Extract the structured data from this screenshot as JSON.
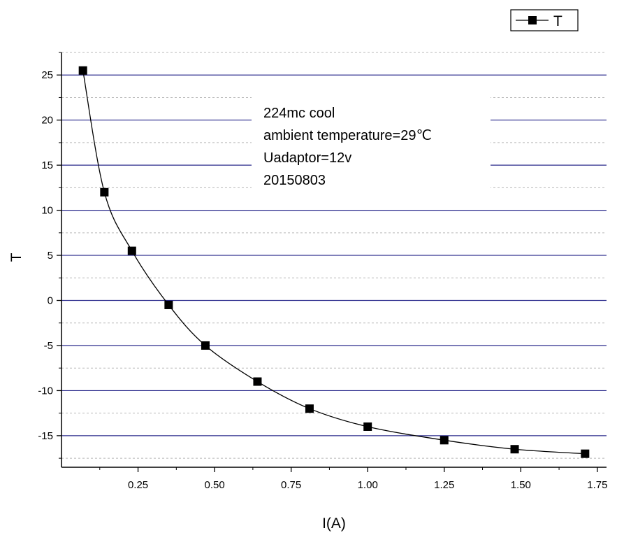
{
  "chart_data": {
    "type": "line",
    "title": "",
    "xlabel": "I(A)",
    "ylabel": "T",
    "xlim": [
      0,
      1.78
    ],
    "ylim": [
      -18.5,
      27.5
    ],
    "x_ticks": [
      0.25,
      0.5,
      0.75,
      1.0,
      1.25,
      1.5,
      1.75
    ],
    "x_tick_labels": [
      "0.25",
      "0.50",
      "0.75",
      "1.00",
      "1.25",
      "1.50",
      "1.75"
    ],
    "y_ticks": [
      25,
      20,
      15,
      10,
      5,
      0,
      -5,
      -10,
      -15
    ],
    "y_tick_labels": [
      "25",
      "20",
      "15",
      "10",
      "5",
      "0",
      "-5",
      "-10",
      "-15"
    ],
    "grid": true,
    "legend": {
      "position": "top-right",
      "entries": [
        "T"
      ]
    },
    "annotation_lines": [
      "224mc cool",
      "ambient temperature=29℃",
      "Uadaptor=12v",
      "20150803"
    ],
    "series": [
      {
        "name": "T",
        "marker": "square",
        "x": [
          0.07,
          0.14,
          0.23,
          0.35,
          0.47,
          0.64,
          0.81,
          1.0,
          1.25,
          1.48,
          1.71
        ],
        "y": [
          25.5,
          12.0,
          5.5,
          -0.5,
          -5.0,
          -9.0,
          -12.0,
          -14.0,
          -15.5,
          -16.5,
          -17.0
        ]
      }
    ],
    "colors": {
      "major_grid": "#2a2a8c",
      "minor_grid": "#b8b8b8",
      "line": "#000000",
      "marker": "#000000"
    }
  }
}
